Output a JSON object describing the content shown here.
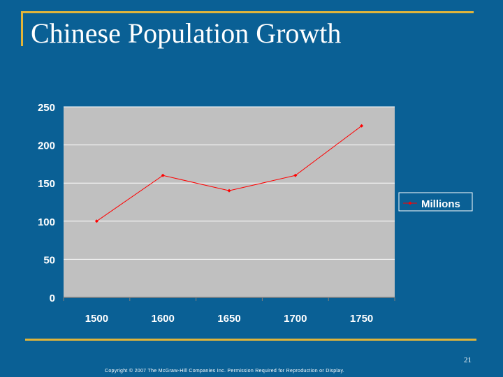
{
  "slide": {
    "title": "Chinese Population Growth",
    "page_number": "21",
    "copyright": "Copyright © 2007 The McGraw-Hill Companies Inc. Permission Required for Reproduction or Display."
  },
  "colors": {
    "background": "#0a6095",
    "accent": "#e0b43a",
    "plot_area": "#c0c0c0",
    "series": "#ff0000"
  },
  "chart_data": {
    "type": "line",
    "title": "",
    "xlabel": "",
    "ylabel": "",
    "categories": [
      "1500",
      "1600",
      "1650",
      "1700",
      "1750"
    ],
    "series": [
      {
        "name": "Millions",
        "values": [
          100,
          160,
          140,
          160,
          225
        ]
      }
    ],
    "ylim": [
      0,
      250
    ],
    "yticks": [
      0,
      50,
      100,
      150,
      200,
      250
    ],
    "grid": true,
    "legend_position": "right"
  }
}
